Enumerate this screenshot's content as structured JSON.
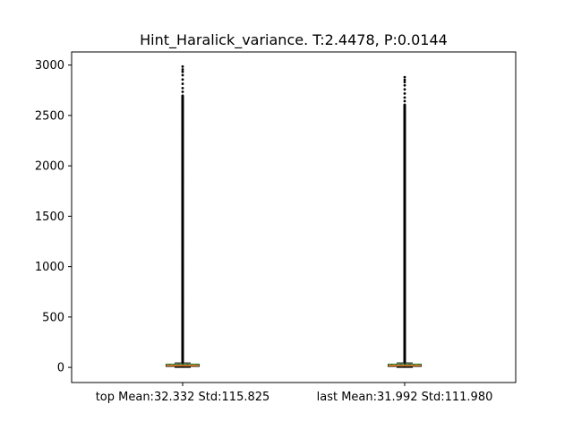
{
  "chart_data": {
    "type": "box",
    "title": "Hint_Haralick_variance. T:2.4478, P:0.0144",
    "xlabel": "",
    "ylabel": "",
    "categories": [
      "top Mean:32.332 Std:115.825",
      "last Mean:31.992 Std:111.980"
    ],
    "ylim": [
      -150,
      3130
    ],
    "yticks": [
      0,
      500,
      1000,
      1500,
      2000,
      2500,
      3000
    ],
    "grid": false,
    "boxes": [
      {
        "category": "top Mean:32.332 Std:115.825",
        "whisker_low": 0,
        "q1": 10,
        "median": 18,
        "mean": 32.332,
        "q3": 30,
        "whisker_high": 45,
        "outlier_max": 2985,
        "outlier_dense_max": 2700
      },
      {
        "category": "last Mean:31.992 Std:111.980",
        "whisker_low": 0,
        "q1": 10,
        "median": 18,
        "mean": 31.992,
        "q3": 30,
        "whisker_high": 45,
        "outlier_max": 2880,
        "outlier_dense_max": 2610
      }
    ],
    "colors": {
      "box": "#000000",
      "median": "#ff7f0e",
      "mean": "#2ca02c",
      "outlier": "#000000"
    }
  }
}
